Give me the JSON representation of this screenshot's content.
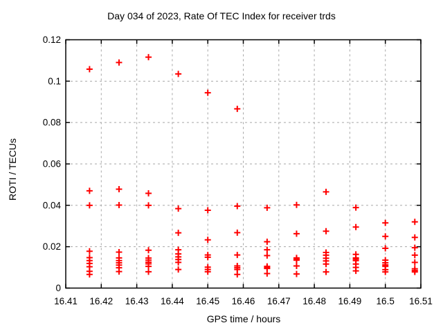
{
  "chart_data": {
    "type": "scatter",
    "title": "Day 034 of 2023, Rate Of TEC Index for receiver trds",
    "xlabel": "GPS time / hours",
    "ylabel": "ROTI / TECUs",
    "xlim": [
      16.41,
      16.51
    ],
    "ylim": [
      0,
      0.12
    ],
    "xticks": {
      "values": [
        16.41,
        16.42,
        16.43,
        16.44,
        16.45,
        16.46,
        16.47,
        16.48,
        16.49,
        16.5,
        16.51
      ],
      "labels": [
        "16.41",
        "16.42",
        "16.43",
        "16.44",
        "16.45",
        "16.46",
        "16.47",
        "16.48",
        "16.49",
        "16.5",
        "16.51"
      ]
    },
    "yticks": {
      "values": [
        0,
        0.02,
        0.04,
        0.06,
        0.08,
        0.1,
        0.12
      ],
      "labels": [
        "0",
        "0.02",
        "0.04",
        "0.06",
        "0.08",
        "0.1",
        "0.12"
      ]
    },
    "grid": true,
    "legend": "none",
    "marker": {
      "shape": "plus",
      "color": "#ff0000",
      "size": 9,
      "stroke_width": 2
    },
    "grid_color": "#a6a6a6",
    "border_color": "#000000",
    "background_color": "#ffffff",
    "series": [
      {
        "name": "ROTI",
        "points": [
          [
            16.4167,
            0.1058
          ],
          [
            16.4167,
            0.047
          ],
          [
            16.4167,
            0.04
          ],
          [
            16.4167,
            0.0178
          ],
          [
            16.4167,
            0.0147
          ],
          [
            16.4167,
            0.0133
          ],
          [
            16.4167,
            0.0119
          ],
          [
            16.4167,
            0.0103
          ],
          [
            16.4167,
            0.0081
          ],
          [
            16.4167,
            0.0066
          ],
          [
            16.425,
            0.109
          ],
          [
            16.425,
            0.0478
          ],
          [
            16.425,
            0.0401
          ],
          [
            16.425,
            0.0174
          ],
          [
            16.425,
            0.0146
          ],
          [
            16.425,
            0.0133
          ],
          [
            16.425,
            0.0122
          ],
          [
            16.425,
            0.0111
          ],
          [
            16.425,
            0.0098
          ],
          [
            16.425,
            0.008
          ],
          [
            16.4333,
            0.1116
          ],
          [
            16.4333,
            0.0458
          ],
          [
            16.4333,
            0.04
          ],
          [
            16.4333,
            0.0183
          ],
          [
            16.4333,
            0.0145
          ],
          [
            16.4333,
            0.0135
          ],
          [
            16.4333,
            0.0125
          ],
          [
            16.4333,
            0.0117
          ],
          [
            16.4333,
            0.0105
          ],
          [
            16.4333,
            0.0079
          ],
          [
            16.4417,
            0.1035
          ],
          [
            16.4417,
            0.0384
          ],
          [
            16.4417,
            0.0267
          ],
          [
            16.4417,
            0.0185
          ],
          [
            16.4417,
            0.0165
          ],
          [
            16.4417,
            0.0151
          ],
          [
            16.4417,
            0.0138
          ],
          [
            16.4417,
            0.0124
          ],
          [
            16.4417,
            0.009
          ],
          [
            16.45,
            0.0944
          ],
          [
            16.45,
            0.0376
          ],
          [
            16.45,
            0.0233
          ],
          [
            16.45,
            0.016
          ],
          [
            16.45,
            0.0149
          ],
          [
            16.45,
            0.0101
          ],
          [
            16.45,
            0.009
          ],
          [
            16.45,
            0.0079
          ],
          [
            16.4583,
            0.0866
          ],
          [
            16.4583,
            0.0396
          ],
          [
            16.4583,
            0.0268
          ],
          [
            16.4583,
            0.016
          ],
          [
            16.4583,
            0.0107
          ],
          [
            16.4583,
            0.0098
          ],
          [
            16.4583,
            0.009
          ],
          [
            16.4583,
            0.0066
          ],
          [
            16.4667,
            0.0388
          ],
          [
            16.4667,
            0.0224
          ],
          [
            16.4667,
            0.0185
          ],
          [
            16.4667,
            0.0157
          ],
          [
            16.4667,
            0.0105
          ],
          [
            16.4667,
            0.01
          ],
          [
            16.4667,
            0.0095
          ],
          [
            16.4667,
            0.007
          ],
          [
            16.475,
            0.0402
          ],
          [
            16.475,
            0.0263
          ],
          [
            16.475,
            0.0146
          ],
          [
            16.475,
            0.014
          ],
          [
            16.475,
            0.0135
          ],
          [
            16.475,
            0.0107
          ],
          [
            16.475,
            0.0068
          ],
          [
            16.4833,
            0.0465
          ],
          [
            16.4833,
            0.0275
          ],
          [
            16.4833,
            0.0172
          ],
          [
            16.4833,
            0.0159
          ],
          [
            16.4833,
            0.0144
          ],
          [
            16.4833,
            0.0131
          ],
          [
            16.4833,
            0.0116
          ],
          [
            16.4833,
            0.0078
          ],
          [
            16.4917,
            0.0389
          ],
          [
            16.4917,
            0.0295
          ],
          [
            16.4917,
            0.0163
          ],
          [
            16.4917,
            0.0146
          ],
          [
            16.4917,
            0.014
          ],
          [
            16.4917,
            0.0133
          ],
          [
            16.4917,
            0.0116
          ],
          [
            16.4917,
            0.01
          ],
          [
            16.4917,
            0.0083
          ],
          [
            16.5,
            0.0315
          ],
          [
            16.5,
            0.025
          ],
          [
            16.5,
            0.0192
          ],
          [
            16.5,
            0.0135
          ],
          [
            16.5,
            0.0122
          ],
          [
            16.5,
            0.0112
          ],
          [
            16.5,
            0.0105
          ],
          [
            16.5,
            0.0089
          ],
          [
            16.5,
            0.0078
          ],
          [
            16.5083,
            0.032
          ],
          [
            16.5083,
            0.0245
          ],
          [
            16.5083,
            0.0195
          ],
          [
            16.5083,
            0.0159
          ],
          [
            16.5083,
            0.0124
          ],
          [
            16.5083,
            0.0093
          ],
          [
            16.5083,
            0.0085
          ],
          [
            16.5083,
            0.0078
          ]
        ]
      }
    ]
  }
}
